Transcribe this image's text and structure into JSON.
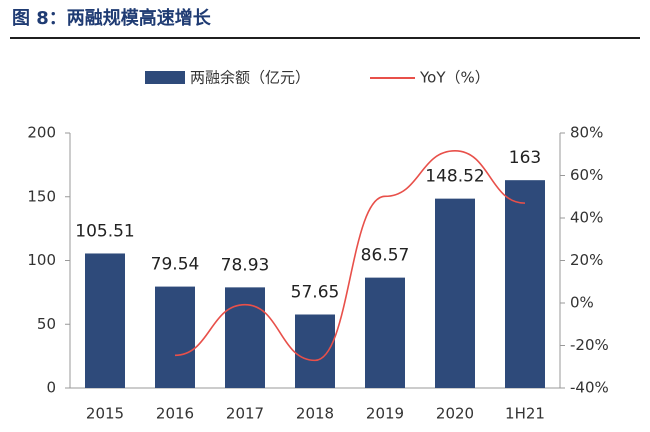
{
  "chart_data": {
    "type": "bar-line",
    "title": "图 8：两融规模高速增长",
    "categories": [
      "2015",
      "2016",
      "2017",
      "2018",
      "2019",
      "2020",
      "1H21"
    ],
    "series": [
      {
        "name": "两融余额（亿元）",
        "color": "#2e4a7a",
        "type": "bar",
        "values": [
          105.51,
          79.54,
          78.93,
          57.65,
          86.57,
          148.52,
          163
        ]
      },
      {
        "name": "YoY（%）",
        "color": "#e8504a",
        "type": "line",
        "axis": "y2",
        "values": [
          null,
          -24.6,
          -0.8,
          -27,
          50.2,
          71.6,
          47
        ]
      }
    ],
    "ylim": [
      0,
      200
    ],
    "yticks": [
      0,
      50,
      100,
      150,
      200
    ],
    "y2lim": [
      -40,
      80
    ],
    "y2ticks": [
      {
        "value": -40,
        "label": "-40%"
      },
      {
        "value": -20,
        "label": "-20%"
      },
      {
        "value": 0,
        "label": "0%"
      },
      {
        "value": 20,
        "label": "20%"
      },
      {
        "value": 40,
        "label": "40%"
      },
      {
        "value": 60,
        "label": "60%"
      },
      {
        "value": 80,
        "label": "80%"
      }
    ],
    "legend": "top"
  }
}
